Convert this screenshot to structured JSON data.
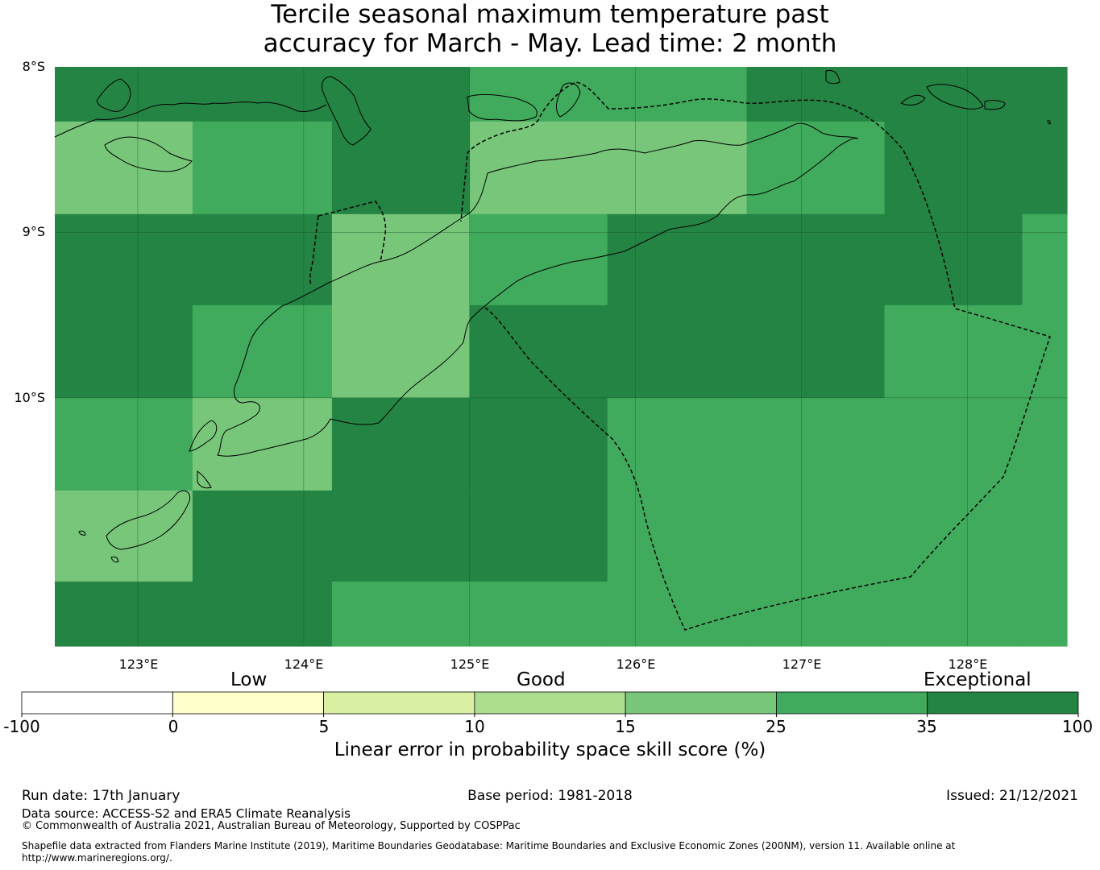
{
  "title": {
    "line1": "Tercile seasonal maximum temperature past",
    "line2": "accuracy for March - May. Lead time: 2 month"
  },
  "map": {
    "lat_labels": [
      "8°S",
      "9°S",
      "10°S"
    ],
    "lon_labels": [
      "123°E",
      "124°E",
      "125°E",
      "126°E",
      "127°E",
      "128°E"
    ],
    "extent": {
      "lon_min": 122.5,
      "lon_max": 128.6,
      "lat_north": -8.0,
      "lat_south": -11.5
    },
    "cell_lon_edges": [
      122.5,
      123.33,
      124.17,
      125.0,
      125.83,
      126.67,
      127.5,
      128.33,
      128.6
    ],
    "cell_lat_edges": [
      -8.0,
      -8.33,
      -8.89,
      -9.44,
      -10.0,
      -10.56,
      -11.11,
      -11.5
    ],
    "skill_classes": [
      [
        6,
        6,
        6,
        5,
        5,
        6,
        6,
        6
      ],
      [
        4,
        5,
        6,
        4,
        4,
        5,
        6,
        6
      ],
      [
        6,
        6,
        4,
        5,
        6,
        6,
        6,
        5
      ],
      [
        6,
        5,
        4,
        6,
        6,
        6,
        5,
        5
      ],
      [
        5,
        4,
        6,
        6,
        5,
        5,
        5,
        5
      ],
      [
        4,
        6,
        6,
        6,
        5,
        5,
        5,
        5
      ],
      [
        6,
        6,
        5,
        5,
        5,
        5,
        5,
        5
      ]
    ]
  },
  "colorbar": {
    "category_labels": {
      "low": "Low",
      "good": "Good",
      "exceptional": "Exceptional"
    },
    "ticks": [
      "-100",
      "0",
      "5",
      "10",
      "15",
      "25",
      "35",
      "100"
    ],
    "colors": [
      "#ffffff",
      "#ffffcc",
      "#d9f0a3",
      "#addd8e",
      "#78c679",
      "#41ab5d",
      "#238443"
    ],
    "title": "Linear error in probability space skill score (%)"
  },
  "footer": {
    "run_date": "Run date: 17th January",
    "base_period": "Base period: 1981-2018",
    "issued": "Issued: 21/12/2021",
    "data_source": "Data source: ACCESS-S2 and ERA5 Climate Reanalysis",
    "copyright": "© Commonwealth of Australia 2021, Australian Bureau of Meteorology, Supported by COSPPac",
    "shapefile_line1": "Shapefile data extracted from Flanders Marine Institute (2019), Maritime Boundaries Geodatabase: Maritime Boundaries and Exclusive Economic Zones (200NM), version 11. Available online at",
    "shapefile_line2": "http://www.marineregions.org/."
  }
}
